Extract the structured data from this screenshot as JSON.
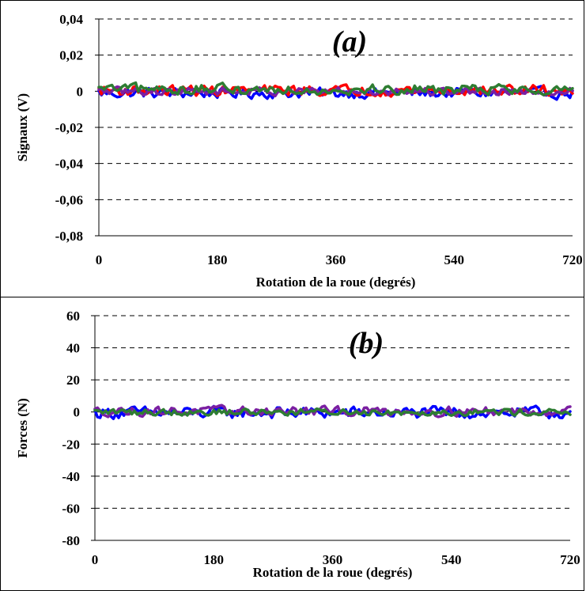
{
  "chart_data": [
    {
      "type": "line",
      "panel_label": "(a)",
      "xlabel": "Rotation de la roue (degrés)",
      "ylabel": "Signaux (V)",
      "xlim": [
        0,
        720
      ],
      "ylim": [
        -0.08,
        0.04
      ],
      "x_ticks": [
        "0",
        "180",
        "360",
        "540",
        "720"
      ],
      "y_ticks": [
        "0,04",
        "0,02",
        "0",
        "-0,02",
        "-0,04",
        "-0,06",
        "-0,08"
      ],
      "grid": "horizontal-dashed",
      "series": [
        {
          "color": "#0000ff",
          "x_range": [
            0,
            720
          ],
          "baseline": -0.001,
          "amplitude": 0.004
        },
        {
          "color": "#ff0000",
          "x_range": [
            0,
            720
          ],
          "baseline": 0.0005,
          "amplitude": 0.004
        },
        {
          "color": "#7b1fa2",
          "x_range": [
            0,
            720
          ],
          "baseline": 0.0,
          "amplitude": 0.003
        },
        {
          "color": "#2e7d32",
          "x_range": [
            0,
            720
          ],
          "baseline": 0.001,
          "amplitude": 0.004
        }
      ]
    },
    {
      "type": "line",
      "panel_label": "(b)",
      "xlabel": "Rotation de la roue (degrés)",
      "ylabel": "Forces (N)",
      "xlim": [
        0,
        720
      ],
      "ylim": [
        -80,
        60
      ],
      "x_ticks": [
        "0",
        "180",
        "360",
        "540",
        "720"
      ],
      "y_ticks": [
        "60",
        "40",
        "20",
        "0",
        "-20",
        "-40",
        "-60",
        "-80"
      ],
      "grid": "horizontal-dashed",
      "series": [
        {
          "color": "#0000ff",
          "x_range": [
            0,
            720
          ],
          "baseline": -0.5,
          "amplitude": 5
        },
        {
          "color": "#7b1fa2",
          "x_range": [
            0,
            720
          ],
          "baseline": 0.5,
          "amplitude": 4
        },
        {
          "color": "#2e7d32",
          "x_range": [
            0,
            720
          ],
          "baseline": 0.0,
          "amplitude": 3
        }
      ]
    }
  ]
}
